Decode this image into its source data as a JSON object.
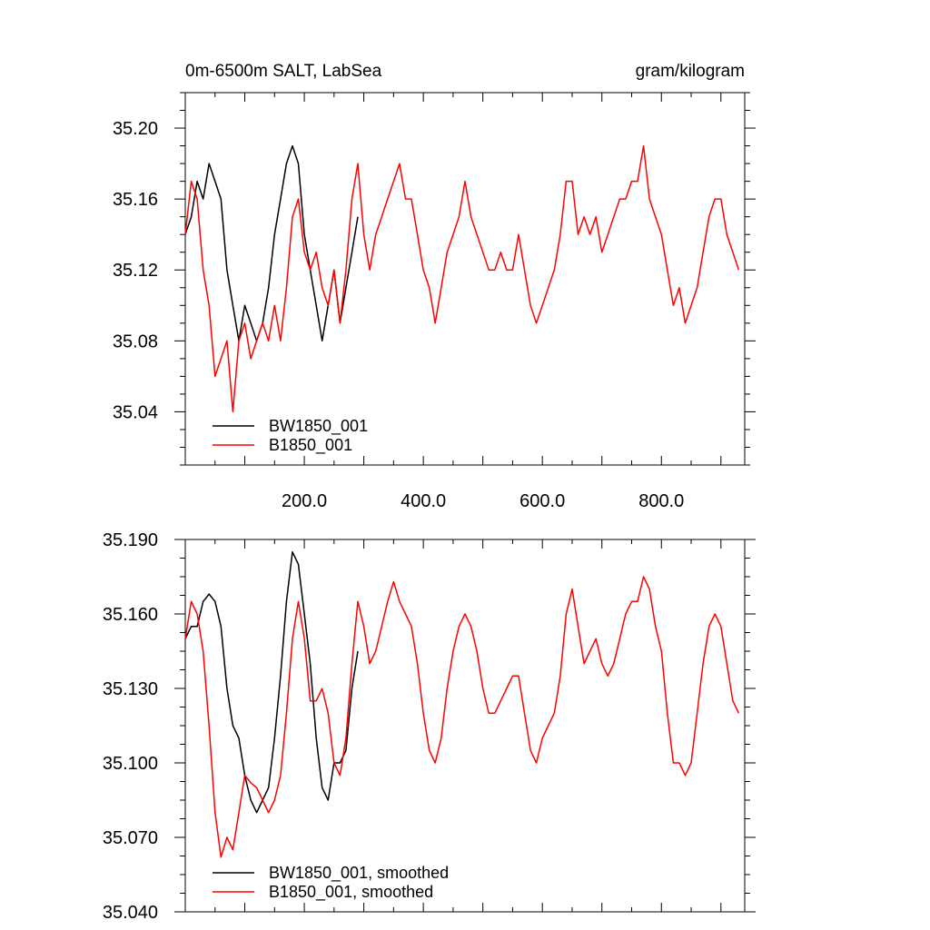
{
  "colors": {
    "black_series": "#000000",
    "red_series": "#ff0000"
  },
  "chart_data": [
    {
      "type": "line",
      "title": "0m-6500m SALT, LabSea",
      "units": "gram/kilogram",
      "xlim": [
        0,
        940
      ],
      "ylim": [
        35.01,
        35.22
      ],
      "xticks": [
        200,
        400,
        600,
        800
      ],
      "xtick_labels": [
        "200.0",
        "400.0",
        "600.0",
        "800.0"
      ],
      "yticks": [
        35.04,
        35.08,
        35.12,
        35.16,
        35.2
      ],
      "ytick_labels": [
        "35.04",
        "35.08",
        "35.12",
        "35.16",
        "35.20"
      ],
      "legend_position": "bottom-left",
      "series": [
        {
          "name": "BW1850_001",
          "color": "#000000",
          "points": [
            [
              0,
              35.14
            ],
            [
              10,
              35.15
            ],
            [
              20,
              35.17
            ],
            [
              30,
              35.16
            ],
            [
              40,
              35.18
            ],
            [
              50,
              35.17
            ],
            [
              60,
              35.16
            ],
            [
              70,
              35.12
            ],
            [
              80,
              35.1
            ],
            [
              90,
              35.08
            ],
            [
              100,
              35.1
            ],
            [
              110,
              35.09
            ],
            [
              120,
              35.08
            ],
            [
              130,
              35.09
            ],
            [
              140,
              35.11
            ],
            [
              150,
              35.14
            ],
            [
              160,
              35.16
            ],
            [
              170,
              35.18
            ],
            [
              180,
              35.19
            ],
            [
              190,
              35.18
            ],
            [
              200,
              35.14
            ],
            [
              210,
              35.12
            ],
            [
              220,
              35.1
            ],
            [
              230,
              35.08
            ],
            [
              240,
              35.1
            ],
            [
              250,
              35.12
            ],
            [
              260,
              35.09
            ],
            [
              270,
              35.11
            ],
            [
              280,
              35.13
            ],
            [
              290,
              35.15
            ]
          ]
        },
        {
          "name": "B1850_001",
          "color": "#ff0000",
          "points": [
            [
              0,
              35.14
            ],
            [
              10,
              35.17
            ],
            [
              20,
              35.16
            ],
            [
              30,
              35.12
            ],
            [
              40,
              35.1
            ],
            [
              50,
              35.06
            ],
            [
              60,
              35.07
            ],
            [
              70,
              35.08
            ],
            [
              80,
              35.04
            ],
            [
              90,
              35.08
            ],
            [
              100,
              35.09
            ],
            [
              110,
              35.07
            ],
            [
              120,
              35.08
            ],
            [
              130,
              35.09
            ],
            [
              140,
              35.08
            ],
            [
              150,
              35.1
            ],
            [
              160,
              35.08
            ],
            [
              170,
              35.11
            ],
            [
              180,
              35.15
            ],
            [
              190,
              35.16
            ],
            [
              200,
              35.13
            ],
            [
              210,
              35.12
            ],
            [
              220,
              35.13
            ],
            [
              230,
              35.11
            ],
            [
              240,
              35.1
            ],
            [
              250,
              35.12
            ],
            [
              260,
              35.09
            ],
            [
              270,
              35.12
            ],
            [
              280,
              35.16
            ],
            [
              290,
              35.18
            ],
            [
              300,
              35.14
            ],
            [
              310,
              35.12
            ],
            [
              320,
              35.14
            ],
            [
              330,
              35.15
            ],
            [
              340,
              35.16
            ],
            [
              350,
              35.17
            ],
            [
              360,
              35.18
            ],
            [
              370,
              35.16
            ],
            [
              380,
              35.16
            ],
            [
              390,
              35.14
            ],
            [
              400,
              35.12
            ],
            [
              410,
              35.11
            ],
            [
              420,
              35.09
            ],
            [
              430,
              35.11
            ],
            [
              440,
              35.13
            ],
            [
              450,
              35.14
            ],
            [
              460,
              35.15
            ],
            [
              470,
              35.17
            ],
            [
              480,
              35.15
            ],
            [
              490,
              35.14
            ],
            [
              500,
              35.13
            ],
            [
              510,
              35.12
            ],
            [
              520,
              35.12
            ],
            [
              530,
              35.13
            ],
            [
              540,
              35.12
            ],
            [
              550,
              35.12
            ],
            [
              560,
              35.14
            ],
            [
              570,
              35.12
            ],
            [
              580,
              35.1
            ],
            [
              590,
              35.09
            ],
            [
              600,
              35.1
            ],
            [
              610,
              35.11
            ],
            [
              620,
              35.12
            ],
            [
              630,
              35.14
            ],
            [
              640,
              35.17
            ],
            [
              650,
              35.17
            ],
            [
              660,
              35.14
            ],
            [
              670,
              35.15
            ],
            [
              680,
              35.14
            ],
            [
              690,
              35.15
            ],
            [
              700,
              35.13
            ],
            [
              710,
              35.14
            ],
            [
              720,
              35.15
            ],
            [
              730,
              35.16
            ],
            [
              740,
              35.16
            ],
            [
              750,
              35.17
            ],
            [
              760,
              35.17
            ],
            [
              770,
              35.19
            ],
            [
              780,
              35.16
            ],
            [
              790,
              35.15
            ],
            [
              800,
              35.14
            ],
            [
              810,
              35.12
            ],
            [
              820,
              35.1
            ],
            [
              830,
              35.11
            ],
            [
              840,
              35.09
            ],
            [
              850,
              35.1
            ],
            [
              860,
              35.11
            ],
            [
              870,
              35.13
            ],
            [
              880,
              35.15
            ],
            [
              890,
              35.16
            ],
            [
              900,
              35.16
            ],
            [
              910,
              35.14
            ],
            [
              920,
              35.13
            ],
            [
              930,
              35.12
            ]
          ]
        }
      ]
    },
    {
      "type": "line",
      "xlim": [
        0,
        940
      ],
      "ylim": [
        35.04,
        35.19
      ],
      "yticks": [
        35.04,
        35.07,
        35.1,
        35.13,
        35.16,
        35.19
      ],
      "ytick_labels": [
        "35.040",
        "35.070",
        "35.100",
        "35.130",
        "35.160",
        "35.190"
      ],
      "legend_position": "bottom-left",
      "series": [
        {
          "name": "BW1850_001, smoothed",
          "color": "#000000",
          "points": [
            [
              0,
              35.15
            ],
            [
              10,
              35.155
            ],
            [
              20,
              35.155
            ],
            [
              30,
              35.165
            ],
            [
              40,
              35.168
            ],
            [
              50,
              35.165
            ],
            [
              60,
              35.155
            ],
            [
              70,
              35.13
            ],
            [
              80,
              35.115
            ],
            [
              90,
              35.11
            ],
            [
              100,
              35.095
            ],
            [
              110,
              35.085
            ],
            [
              120,
              35.08
            ],
            [
              130,
              35.085
            ],
            [
              140,
              35.09
            ],
            [
              150,
              35.11
            ],
            [
              160,
              35.135
            ],
            [
              170,
              35.165
            ],
            [
              180,
              35.185
            ],
            [
              190,
              35.18
            ],
            [
              200,
              35.16
            ],
            [
              210,
              35.14
            ],
            [
              220,
              35.11
            ],
            [
              230,
              35.09
            ],
            [
              240,
              35.085
            ],
            [
              250,
              35.1
            ],
            [
              260,
              35.1
            ],
            [
              270,
              35.105
            ],
            [
              280,
              35.13
            ],
            [
              290,
              35.145
            ]
          ]
        },
        {
          "name": "B1850_001, smoothed",
          "color": "#ff0000",
          "points": [
            [
              0,
              35.15
            ],
            [
              10,
              35.165
            ],
            [
              20,
              35.16
            ],
            [
              30,
              35.145
            ],
            [
              40,
              35.115
            ],
            [
              50,
              35.08
            ],
            [
              60,
              35.062
            ],
            [
              70,
              35.07
            ],
            [
              80,
              35.065
            ],
            [
              90,
              35.08
            ],
            [
              100,
              35.095
            ],
            [
              110,
              35.092
            ],
            [
              120,
              35.09
            ],
            [
              130,
              35.085
            ],
            [
              140,
              35.08
            ],
            [
              150,
              35.085
            ],
            [
              160,
              35.095
            ],
            [
              170,
              35.12
            ],
            [
              180,
              35.15
            ],
            [
              190,
              35.165
            ],
            [
              200,
              35.15
            ],
            [
              210,
              35.125
            ],
            [
              220,
              35.125
            ],
            [
              230,
              35.13
            ],
            [
              240,
              35.12
            ],
            [
              250,
              35.1
            ],
            [
              260,
              35.095
            ],
            [
              270,
              35.11
            ],
            [
              280,
              35.14
            ],
            [
              290,
              35.165
            ],
            [
              300,
              35.155
            ],
            [
              310,
              35.14
            ],
            [
              320,
              35.145
            ],
            [
              330,
              35.155
            ],
            [
              340,
              35.165
            ],
            [
              350,
              35.173
            ],
            [
              360,
              35.165
            ],
            [
              370,
              35.16
            ],
            [
              380,
              35.155
            ],
            [
              390,
              35.14
            ],
            [
              400,
              35.12
            ],
            [
              410,
              35.105
            ],
            [
              420,
              35.1
            ],
            [
              430,
              35.11
            ],
            [
              440,
              35.13
            ],
            [
              450,
              35.145
            ],
            [
              460,
              35.155
            ],
            [
              470,
              35.16
            ],
            [
              480,
              35.155
            ],
            [
              490,
              35.145
            ],
            [
              500,
              35.13
            ],
            [
              510,
              35.12
            ],
            [
              520,
              35.12
            ],
            [
              530,
              35.125
            ],
            [
              540,
              35.13
            ],
            [
              550,
              35.135
            ],
            [
              560,
              35.135
            ],
            [
              570,
              35.12
            ],
            [
              580,
              35.105
            ],
            [
              590,
              35.1
            ],
            [
              600,
              35.11
            ],
            [
              610,
              35.115
            ],
            [
              620,
              35.12
            ],
            [
              630,
              35.135
            ],
            [
              640,
              35.16
            ],
            [
              650,
              35.17
            ],
            [
              660,
              35.155
            ],
            [
              670,
              35.14
            ],
            [
              680,
              35.145
            ],
            [
              690,
              35.15
            ],
            [
              700,
              35.14
            ],
            [
              710,
              35.135
            ],
            [
              720,
              35.14
            ],
            [
              730,
              35.15
            ],
            [
              740,
              35.16
            ],
            [
              750,
              35.165
            ],
            [
              760,
              35.165
            ],
            [
              770,
              35.175
            ],
            [
              780,
              35.17
            ],
            [
              790,
              35.155
            ],
            [
              800,
              35.145
            ],
            [
              810,
              35.12
            ],
            [
              820,
              35.1
            ],
            [
              830,
              35.1
            ],
            [
              840,
              35.095
            ],
            [
              850,
              35.1
            ],
            [
              860,
              35.12
            ],
            [
              870,
              35.14
            ],
            [
              880,
              35.155
            ],
            [
              890,
              35.16
            ],
            [
              900,
              35.155
            ],
            [
              910,
              35.14
            ],
            [
              920,
              35.125
            ],
            [
              930,
              35.12
            ]
          ]
        }
      ]
    }
  ]
}
